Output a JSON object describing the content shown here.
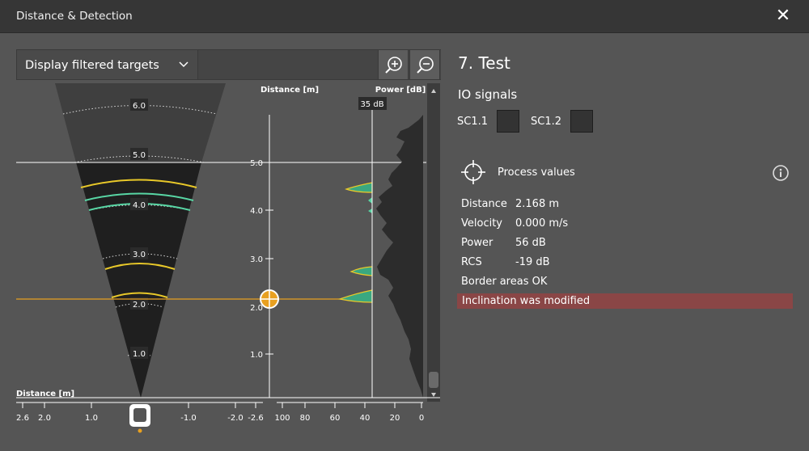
{
  "window": {
    "title": "Distance & Detection",
    "close_icon": "close-icon"
  },
  "toolbar": {
    "dropdown_value": "Display filtered targets",
    "zoom_in_icon": "zoom-in-icon",
    "zoom_out_icon": "zoom-out-icon"
  },
  "cone": {
    "labels": [
      "6.0",
      "5.0",
      "4.0",
      "3.0",
      "2.0",
      "1.0"
    ],
    "bottom_label": "Distance [m]",
    "axis_ticks": [
      "2.6",
      "2.0",
      "1.0",
      "-1.0",
      "-2.0",
      "-2.6"
    ]
  },
  "distance_axis": {
    "label": "Distance [m]",
    "ticks": [
      "5.0",
      "4.0",
      "3.0",
      "2.0",
      "1.0"
    ]
  },
  "power_axis": {
    "label": "Power [dB]",
    "ticks": [
      "100",
      "80",
      "60",
      "40",
      "20",
      "0"
    ],
    "threshold_label": "35 dB"
  },
  "colors": {
    "target_yellow": "#e8c829",
    "target_green": "#58d6a4",
    "marker": "#e8a020",
    "warning": "#8a4646"
  },
  "panel": {
    "title": "7. Test",
    "io_title": "IO signals",
    "signals": [
      {
        "label": "SC1.1"
      },
      {
        "label": "SC1.2"
      }
    ],
    "process_title": "Process values",
    "process": [
      {
        "name": "Distance",
        "value": "2.168 m"
      },
      {
        "name": "Velocity",
        "value": "0.000 m/s"
      },
      {
        "name": "Power",
        "value": "56 dB"
      },
      {
        "name": "RCS",
        "value": "-19 dB"
      }
    ],
    "border_status": "Border areas OK",
    "warning": "Inclination was modified"
  }
}
